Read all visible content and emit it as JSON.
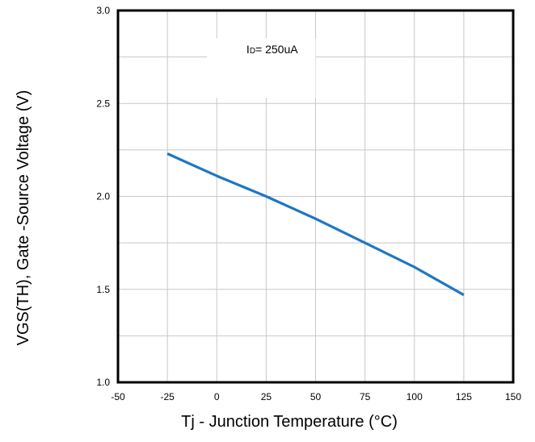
{
  "chart_data": {
    "type": "line",
    "title": "",
    "xlabel": "Tj - Junction Temperature (°C)",
    "ylabel": "VGS(TH), Gate -Source Voltage (V)",
    "xlim": [
      -50,
      150
    ],
    "ylim": [
      1.0,
      3.0
    ],
    "x_ticks": [
      "-50",
      "-25",
      "0",
      "25",
      "50",
      "75",
      "100",
      "125",
      "150"
    ],
    "y_ticks": [
      "1.0",
      "1.5",
      "2.0",
      "2.5",
      "3.0"
    ],
    "x_tick_values": [
      -50,
      -25,
      0,
      25,
      50,
      75,
      100,
      125,
      150
    ],
    "y_tick_values": [
      1.0,
      1.5,
      2.0,
      2.5,
      3.0
    ],
    "grid": true,
    "legend": "none",
    "annotation": {
      "label_main": "I",
      "label_sub": "D",
      "label_rest": "= 250uA"
    },
    "series": [
      {
        "color": "#1f77c4",
        "x": [
          -25,
          0,
          25,
          50,
          75,
          100,
          125
        ],
        "y": [
          2.23,
          2.11,
          2.0,
          1.88,
          1.75,
          1.62,
          1.47
        ]
      }
    ]
  }
}
